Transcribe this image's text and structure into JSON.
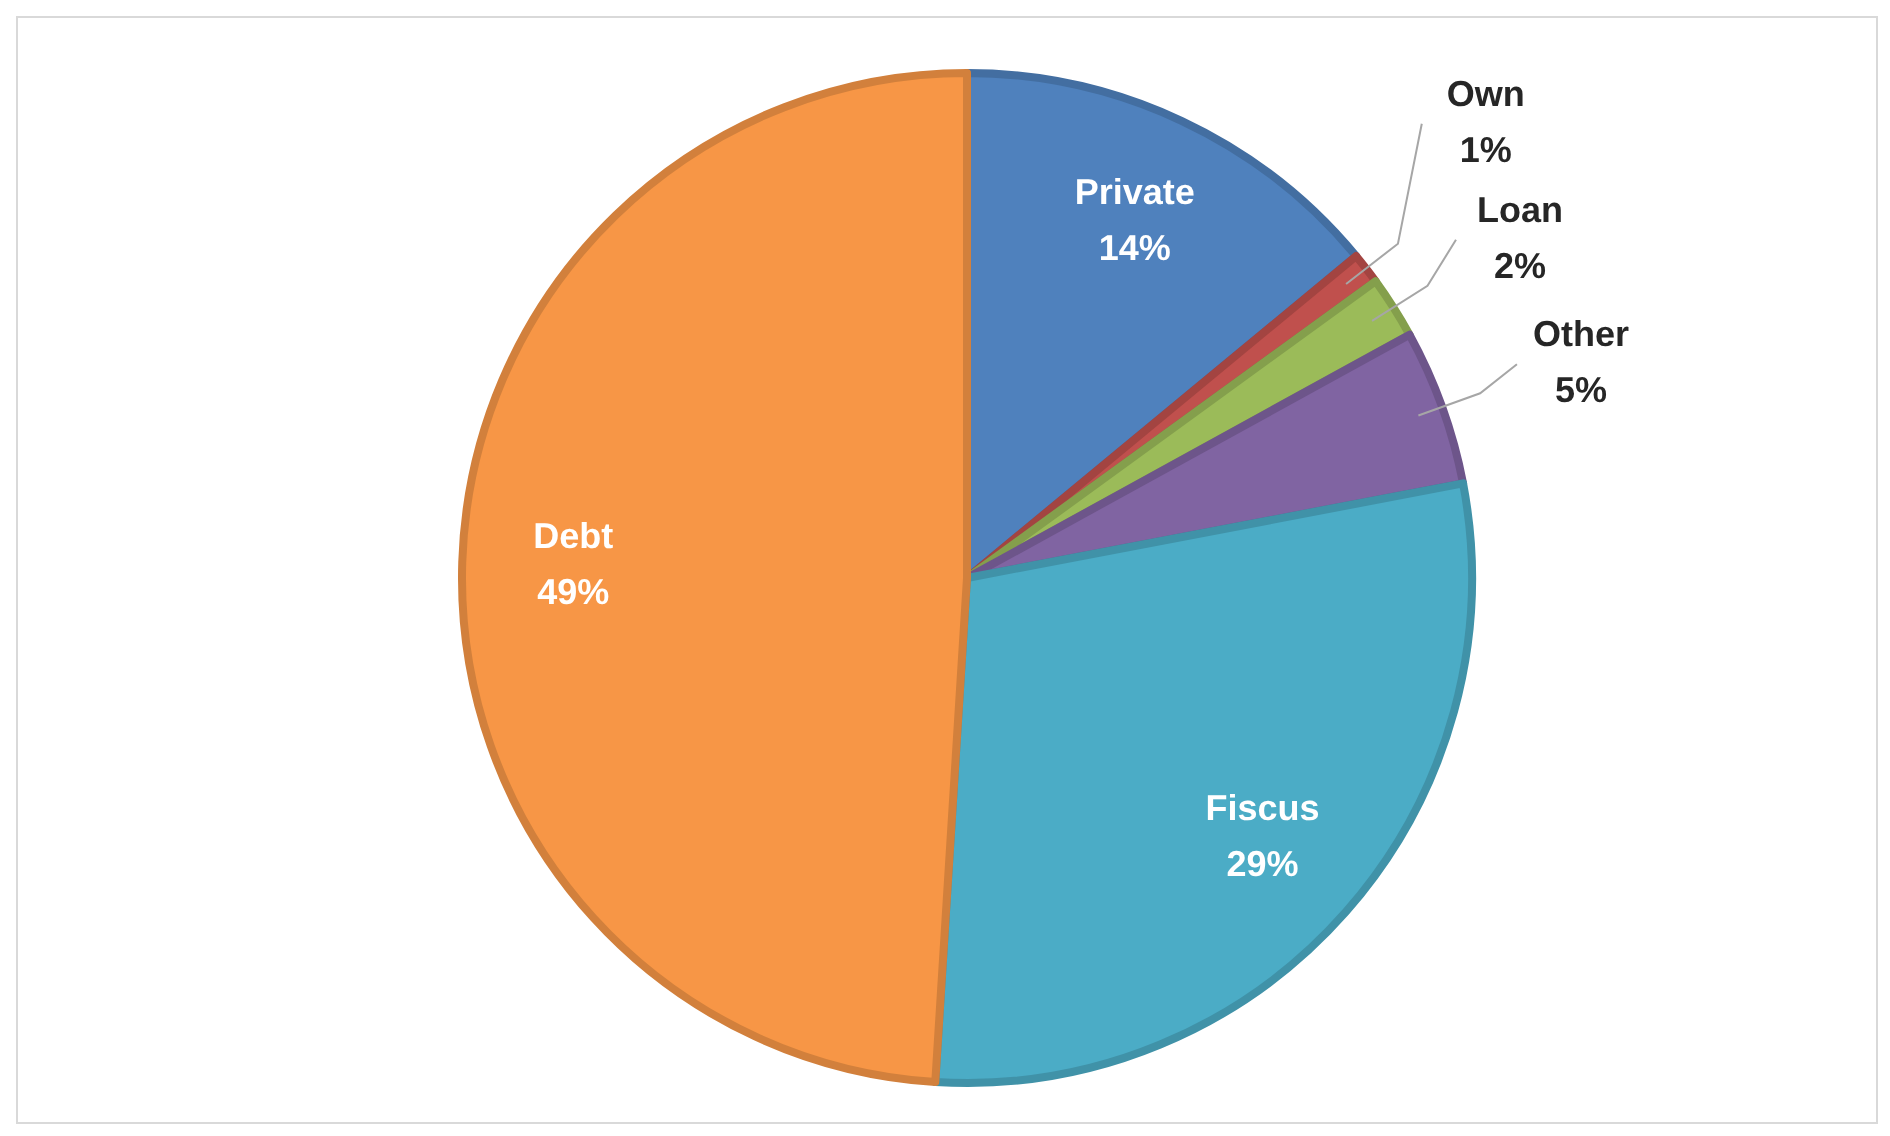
{
  "chart_data": {
    "type": "pie",
    "categories": [
      "Private",
      "Own",
      "Loan",
      "Other",
      "Fiscus",
      "Debt"
    ],
    "values": [
      14,
      1,
      2,
      5,
      29,
      49
    ],
    "colors": [
      "#4f81bd",
      "#c0504d",
      "#9bbb59",
      "#8064a2",
      "#4bacc6",
      "#f79646"
    ],
    "value_labels": [
      "14%",
      "1%",
      "2%",
      "5%",
      "29%",
      "49%"
    ],
    "legend": false
  }
}
